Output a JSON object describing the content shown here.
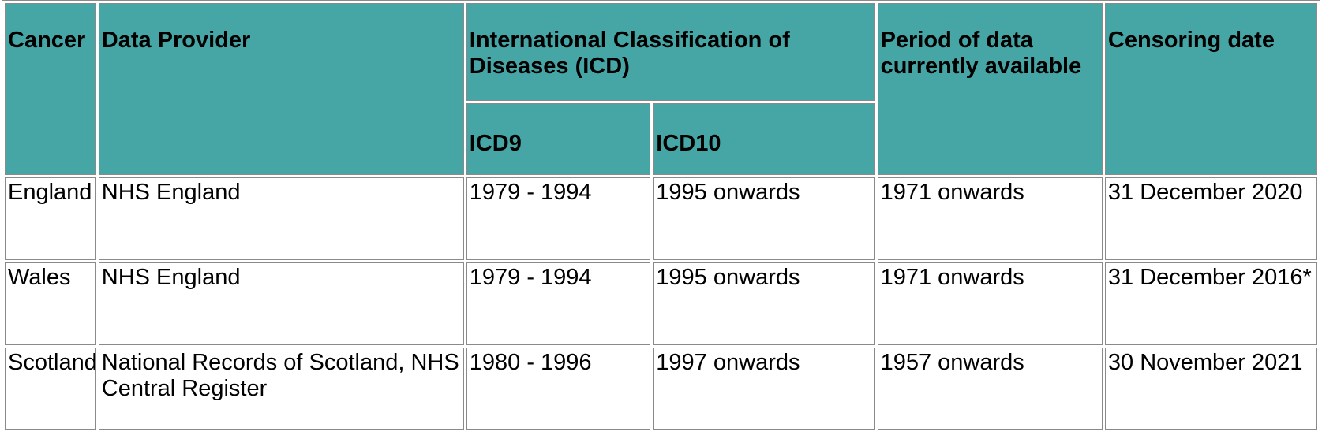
{
  "table": {
    "headers": {
      "cancer": "Cancer",
      "data_provider": "Data Provider",
      "icd_group": "International Classification of Diseases (ICD)",
      "icd9": "ICD9",
      "icd10": "ICD10",
      "period": "Period of data currently available",
      "censoring": "Censoring date"
    },
    "rows": [
      {
        "cancer": "England",
        "provider": "NHS England",
        "icd9": "1979 - 1994",
        "icd10": "1995 onwards",
        "period": "1971 onwards",
        "censoring": "31 December 2020"
      },
      {
        "cancer": "Wales",
        "provider": "NHS England",
        "icd9": "1979 - 1994",
        "icd10": "1995 onwards",
        "period": "1971 onwards",
        "censoring": "31 December 2016*"
      },
      {
        "cancer": "Scotland",
        "provider": "National Records of Scotland, NHS Central Register",
        "icd9": "1980 - 1996",
        "icd10": "1997 onwards",
        "period": "1957 onwards",
        "censoring": "30 November 2021"
      }
    ]
  },
  "colors": {
    "header_background": "#46a6a6",
    "border": "#8a8a8a",
    "cell_background": "#ffffff"
  }
}
